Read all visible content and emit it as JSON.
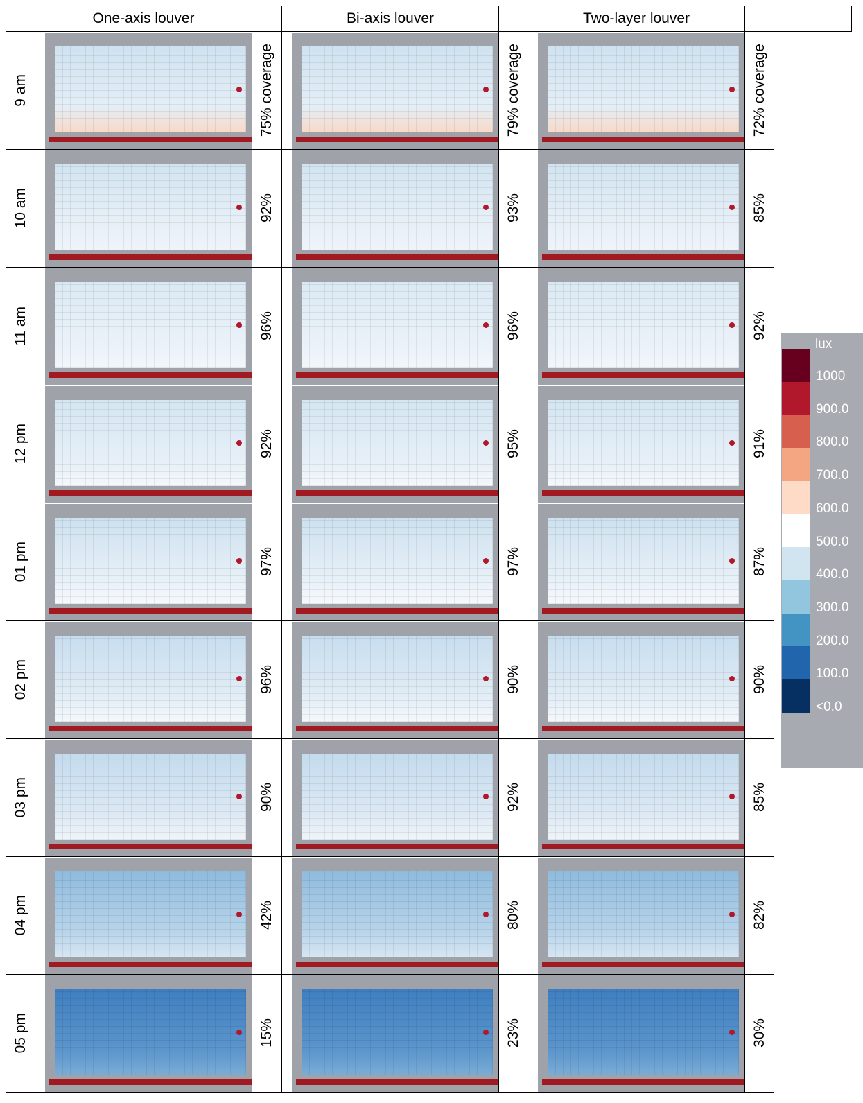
{
  "header": {
    "columns": [
      "One-axis louver",
      "Bi-axis louver",
      "Two-layer louver"
    ]
  },
  "rows": [
    {
      "time": "9 am",
      "coverage": [
        "75% coverage",
        "79% coverage",
        "72% coverage"
      ]
    },
    {
      "time": "10 am",
      "coverage": [
        "92%",
        "93%",
        "85%"
      ]
    },
    {
      "time": "11 am",
      "coverage": [
        "96%",
        "96%",
        "92%"
      ]
    },
    {
      "time": "12 pm",
      "coverage": [
        "92%",
        "95%",
        "91%"
      ]
    },
    {
      "time": "01 pm",
      "coverage": [
        "97%",
        "97%",
        "87%"
      ]
    },
    {
      "time": "02 pm",
      "coverage": [
        "96%",
        "90%",
        "90%"
      ]
    },
    {
      "time": "03 pm",
      "coverage": [
        "90%",
        "92%",
        "85%"
      ]
    },
    {
      "time": "04 pm",
      "coverage": [
        "42%",
        "80%",
        "82%"
      ]
    },
    {
      "time": "05 pm",
      "coverage": [
        "15%",
        "23%",
        "30%"
      ]
    }
  ],
  "legend": {
    "unit": "lux",
    "labels": [
      "1000",
      "900.0",
      "800.0",
      "700.0",
      "600.0",
      "500.0",
      "400.0",
      "300.0",
      "200.0",
      "100.0",
      "<0.0"
    ],
    "colors": [
      "#67001f",
      "#b2182b",
      "#d6604d",
      "#f4a582",
      "#fddbc7",
      "#ffffff",
      "#d1e5f0",
      "#92c5de",
      "#4393c3",
      "#2166ac",
      "#053061"
    ]
  }
}
